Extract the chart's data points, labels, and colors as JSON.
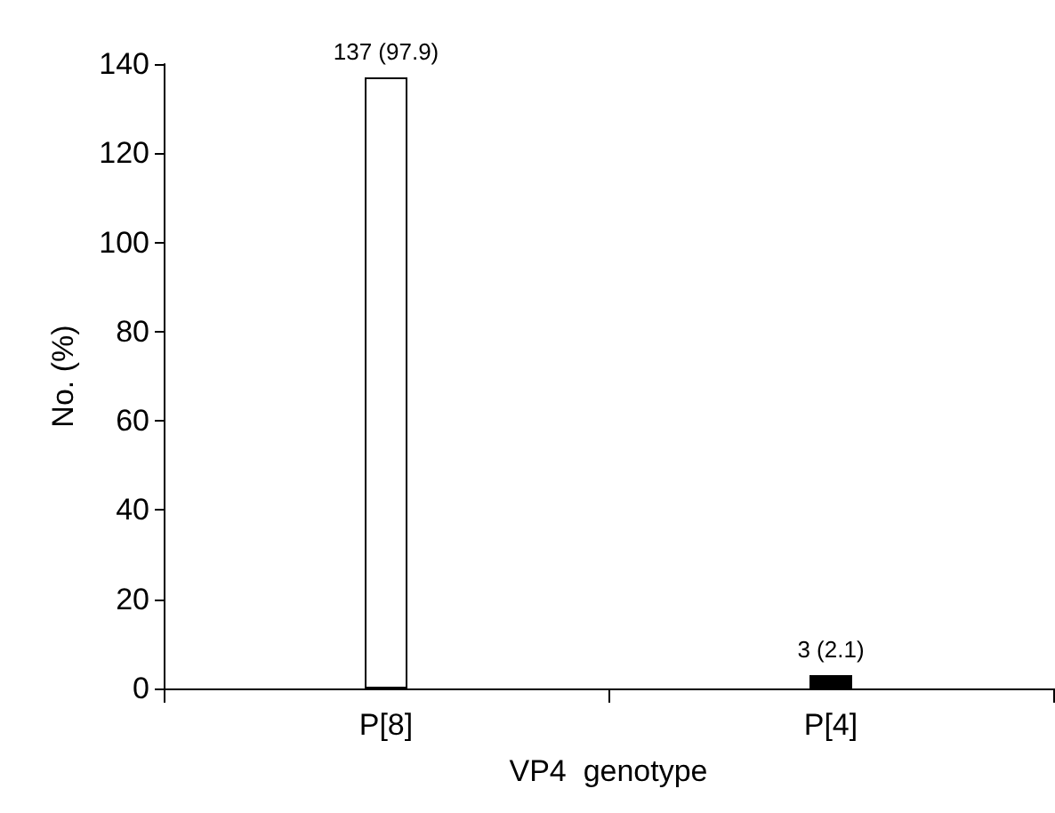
{
  "chart_data": {
    "type": "bar",
    "xlabel": "VP4  genotype",
    "ylabel": "No. (%)",
    "categories": [
      "P[8]",
      "P[4]"
    ],
    "values": [
      137,
      3
    ],
    "colors": [
      "#ffffff",
      "#000000"
    ],
    "value_labels": [
      "137 (97.9)",
      "3 (2.1)"
    ],
    "ylim": [
      0,
      140
    ],
    "yticks": [
      0,
      20,
      40,
      60,
      80,
      100,
      120,
      140
    ],
    "grid": false
  }
}
